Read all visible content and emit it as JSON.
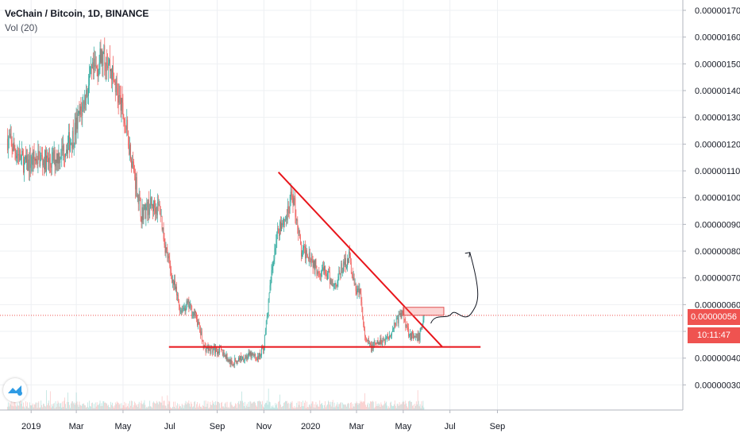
{
  "header": {
    "symbol_title": "VeChain / Bitcoin, 1D, BINANCE",
    "volume_label": "Vol (20)"
  },
  "price_tags": {
    "last_price": "0.00000056",
    "countdown": "10:11:47"
  },
  "colors": {
    "up": "#26a69a",
    "down": "#ef5350",
    "drawing": "#e8151b",
    "grid": "#eef0f3",
    "axis_text": "#131722"
  },
  "chart_data": {
    "type": "candlestick",
    "symbol": "VeChain / Bitcoin",
    "interval": "1D",
    "exchange": "BINANCE",
    "x_ticks": [
      "2019",
      "Mar",
      "May",
      "Jul",
      "Sep",
      "Nov",
      "2020",
      "Mar",
      "May",
      "Jul",
      "Sep"
    ],
    "y_ticks": [
      "0.00000170",
      "0.00000160",
      "0.00000150",
      "0.00000140",
      "0.00000130",
      "0.00000120",
      "0.00000110",
      "0.00000100",
      "0.00000090",
      "0.00000080",
      "0.00000070",
      "0.00000060",
      "0.00000050",
      "0.00000040",
      "0.00000030"
    ],
    "ylim": [
      2.6e-07,
      1.74e-06
    ],
    "last_price": 5.6e-07,
    "price_path": [
      [
        "2018-12-01",
        1.22e-06
      ],
      [
        "2018-12-25",
        1.12e-06
      ],
      [
        "2019-01-10",
        1.15e-06
      ],
      [
        "2019-01-25",
        1.13e-06
      ],
      [
        "2019-02-10",
        1.17e-06
      ],
      [
        "2019-02-25",
        1.23e-06
      ],
      [
        "2019-03-08",
        1.33e-06
      ],
      [
        "2019-03-20",
        1.45e-06
      ],
      [
        "2019-04-01",
        1.51e-06
      ],
      [
        "2019-04-10",
        1.53e-06
      ],
      [
        "2019-04-25",
        1.38e-06
      ],
      [
        "2019-05-06",
        1.25e-06
      ],
      [
        "2019-05-15",
        1.1e-06
      ],
      [
        "2019-05-25",
        9.4e-07
      ],
      [
        "2019-06-05",
        9.7e-07
      ],
      [
        "2019-06-18",
        9.6e-07
      ],
      [
        "2019-06-25",
        8.2e-07
      ],
      [
        "2019-07-05",
        6.9e-07
      ],
      [
        "2019-07-15",
        5.8e-07
      ],
      [
        "2019-07-25",
        6e-07
      ],
      [
        "2019-08-05",
        5.5e-07
      ],
      [
        "2019-08-15",
        4.4e-07
      ],
      [
        "2019-08-25",
        4.3e-07
      ],
      [
        "2019-09-05",
        4.3e-07
      ],
      [
        "2019-09-20",
        3.8e-07
      ],
      [
        "2019-10-01",
        4e-07
      ],
      [
        "2019-10-15",
        4.1e-07
      ],
      [
        "2019-10-25",
        4e-07
      ],
      [
        "2019-11-01",
        4.5e-07
      ],
      [
        "2019-11-08",
        6.3e-07
      ],
      [
        "2019-11-15",
        8.2e-07
      ],
      [
        "2019-11-22",
        9e-07
      ],
      [
        "2019-11-28",
        9.2e-07
      ],
      [
        "2019-12-03",
        9.4e-07
      ],
      [
        "2019-12-08",
        1.02e-06
      ],
      [
        "2019-12-15",
        9e-07
      ],
      [
        "2019-12-20",
        7.9e-07
      ],
      [
        "2019-12-28",
        8e-07
      ],
      [
        "2020-01-08",
        7.4e-07
      ],
      [
        "2020-01-20",
        7.2e-07
      ],
      [
        "2020-02-01",
        6.7e-07
      ],
      [
        "2020-02-10",
        7.3e-07
      ],
      [
        "2020-02-20",
        7.8e-07
      ],
      [
        "2020-02-28",
        6.6e-07
      ],
      [
        "2020-03-06",
        6.4e-07
      ],
      [
        "2020-03-12",
        4.7e-07
      ],
      [
        "2020-03-20",
        4.4e-07
      ],
      [
        "2020-04-01",
        4.6e-07
      ],
      [
        "2020-04-12",
        4.8e-07
      ],
      [
        "2020-04-20",
        5.3e-07
      ],
      [
        "2020-04-30",
        5.7e-07
      ],
      [
        "2020-05-08",
        5e-07
      ],
      [
        "2020-05-15",
        4.7e-07
      ],
      [
        "2020-05-22",
        4.8e-07
      ],
      [
        "2020-05-28",
        5.6e-07
      ]
    ],
    "annotations": {
      "descending_trendline": [
        [
          "2019-11-20",
          1.095e-06
        ],
        [
          "2020-06-21",
          4.42e-07
        ]
      ],
      "support_line": [
        [
          "2019-06-30",
          4.42e-07
        ],
        [
          "2020-08-10",
          4.42e-07
        ]
      ],
      "resistance_box": [
        [
          "2020-05-01",
          5.9e-07
        ],
        [
          "2020-06-23",
          5.6e-07
        ]
      ],
      "projection_arrow": [
        [
          "2020-06-06",
          5.3e-07
        ],
        [
          "2020-07-27",
          7.95e-07
        ]
      ]
    }
  }
}
